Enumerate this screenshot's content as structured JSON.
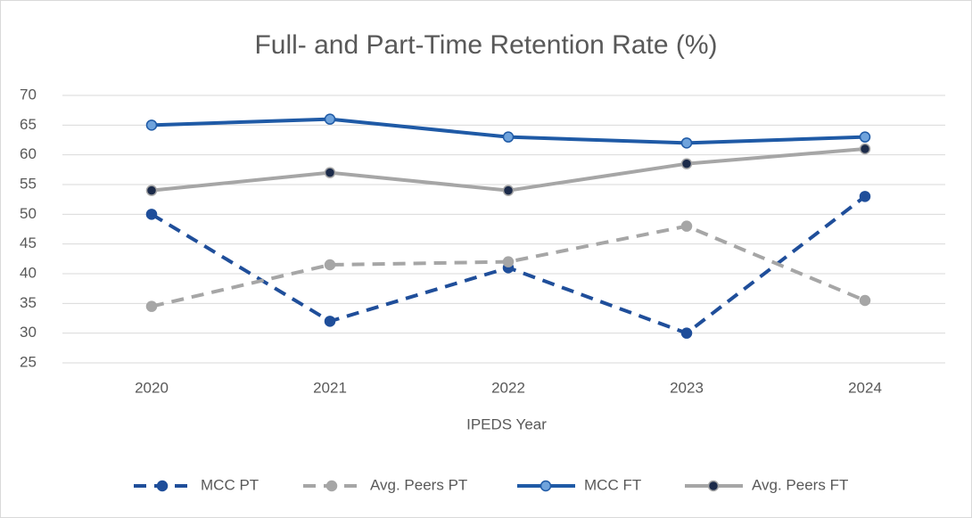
{
  "chart_data": {
    "type": "line",
    "title": "Full- and Part-Time Retention Rate (%)",
    "x_label": "IPEDS Year",
    "categories": [
      "2020",
      "2021",
      "2022",
      "2023",
      "2024"
    ],
    "series": [
      {
        "name": "MCC PT",
        "color": "#1f4e9a",
        "marker_color": "#1f4e9a",
        "dashed": true,
        "values": [
          50,
          32,
          41,
          30,
          53
        ]
      },
      {
        "name": "Avg. Peers PT",
        "color": "#a6a6a6",
        "marker_color": "#a6a6a6",
        "dashed": true,
        "values": [
          34.5,
          41.5,
          42,
          48,
          35.5
        ]
      },
      {
        "name": "MCC FT",
        "color": "#1f5aa6",
        "marker_color": "#6fa3dc",
        "dashed": false,
        "values": [
          65,
          66,
          63,
          62,
          63
        ]
      },
      {
        "name": "Avg. Peers FT",
        "color": "#a6a6a6",
        "marker_color": "#1c2b4a",
        "dashed": false,
        "values": [
          54,
          57,
          54,
          58.5,
          61
        ]
      }
    ],
    "ylim": [
      25,
      70
    ],
    "yticks": [
      25,
      30,
      35,
      40,
      45,
      50,
      55,
      60,
      65,
      70
    ],
    "grid": true,
    "legend": "bottom"
  }
}
